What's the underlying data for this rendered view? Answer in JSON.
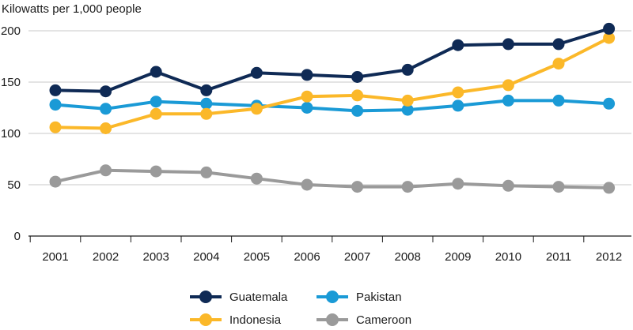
{
  "chart_data": {
    "type": "line",
    "title": "",
    "ylabel": "Kilowatts per 1,000 people",
    "xlabel": "",
    "categories": [
      "2001",
      "2002",
      "2003",
      "2004",
      "2005",
      "2006",
      "2007",
      "2008",
      "2009",
      "2010",
      "2011",
      "2012"
    ],
    "ylim": [
      0,
      200
    ],
    "yticks": [
      0,
      50,
      100,
      150,
      200
    ],
    "grid": true,
    "legend_position": "bottom",
    "series": [
      {
        "name": "Guatemala",
        "color": "#0f2a55",
        "values": [
          142,
          141,
          160,
          142,
          159,
          157,
          155,
          162,
          186,
          187,
          187,
          202
        ]
      },
      {
        "name": "Pakistan",
        "color": "#1a9ad6",
        "values": [
          128,
          124,
          131,
          129,
          127,
          125,
          122,
          123,
          127,
          132,
          132,
          129
        ]
      },
      {
        "name": "Indonesia",
        "color": "#fbb829",
        "values": [
          106,
          105,
          119,
          119,
          124,
          136,
          137,
          132,
          140,
          147,
          168,
          193
        ]
      },
      {
        "name": "Cameroon",
        "color": "#9a9a9a",
        "values": [
          53,
          64,
          63,
          62,
          56,
          50,
          48,
          48,
          51,
          49,
          48,
          47
        ]
      }
    ]
  }
}
